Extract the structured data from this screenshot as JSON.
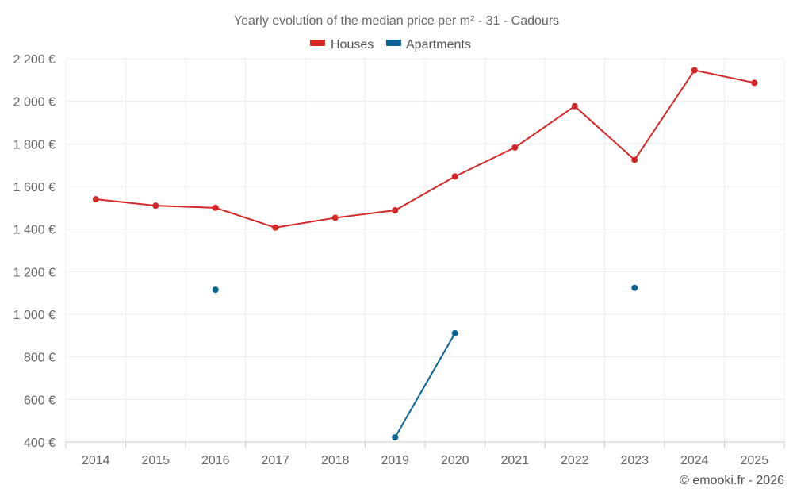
{
  "chart_data": {
    "type": "line",
    "title": "Yearly evolution of the median price per m² - 31 - Cadours",
    "xlabel": "",
    "ylabel": "",
    "categories": [
      "2014",
      "2015",
      "2016",
      "2017",
      "2018",
      "2019",
      "2020",
      "2021",
      "2022",
      "2023",
      "2024",
      "2025"
    ],
    "ylim": [
      400,
      2200
    ],
    "yticks": [
      400,
      600,
      800,
      1000,
      1200,
      1400,
      1600,
      1800,
      2000,
      2200
    ],
    "ytick_labels": [
      "400 €",
      "600 €",
      "800 €",
      "1 000 €",
      "1 200 €",
      "1 400 €",
      "1 600 €",
      "1 800 €",
      "2 000 €",
      "2 200 €"
    ],
    "grid": true,
    "legend_position": "top-center",
    "series": [
      {
        "name": "Houses",
        "color": "#d62728",
        "values": [
          1540,
          1510,
          1500,
          1407,
          1453,
          1488,
          1647,
          1783,
          1977,
          1725,
          2146,
          2087
        ]
      },
      {
        "name": "Apartments",
        "color": "#0a6496",
        "values": [
          null,
          null,
          1115,
          null,
          null,
          422,
          911,
          null,
          null,
          1124,
          null,
          null
        ]
      }
    ],
    "credit": "© emooki.fr - 2026"
  }
}
